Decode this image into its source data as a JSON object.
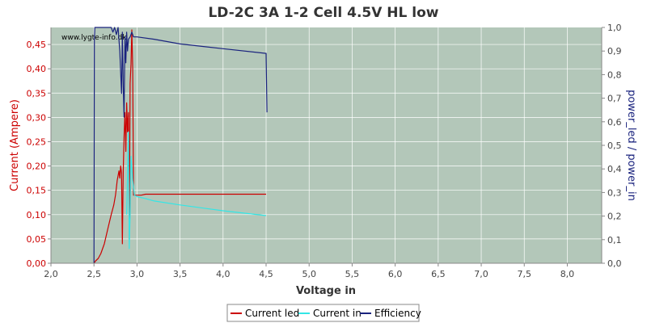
{
  "chart_data": {
    "type": "line",
    "title": "LD-2C 3A 1-2 Cell 4.5V HL low",
    "watermark": "www.lygte-info.dk",
    "xlabel": "Voltage in",
    "ylabel_left": "Current (Ampere)",
    "ylabel_right": "power_led / power_in",
    "xlim": [
      2.0,
      8.4
    ],
    "ylim_left": [
      0.0,
      0.485
    ],
    "ylim_right": [
      0.0,
      1.0
    ],
    "x_ticks": [
      "2,0",
      "2,5",
      "3,0",
      "3,5",
      "4,0",
      "4,5",
      "5,0",
      "5,5",
      "6,0",
      "6,5",
      "7,0",
      "7,5",
      "8,0"
    ],
    "x_tick_values": [
      2.0,
      2.5,
      3.0,
      3.5,
      4.0,
      4.5,
      5.0,
      5.5,
      6.0,
      6.5,
      7.0,
      7.5,
      8.0
    ],
    "y_left_ticks": [
      "0,00",
      "0,05",
      "0,10",
      "0,15",
      "0,20",
      "0,25",
      "0,30",
      "0,35",
      "0,40",
      "0,45"
    ],
    "y_left_tick_values": [
      0.0,
      0.05,
      0.1,
      0.15,
      0.2,
      0.25,
      0.3,
      0.35,
      0.4,
      0.45
    ],
    "y_right_ticks": [
      "0,0",
      "0,1",
      "0,2",
      "0,3",
      "0,4",
      "0,5",
      "0,6",
      "0,7",
      "0,8",
      "0,9",
      "1,0"
    ],
    "y_right_tick_values": [
      0.0,
      0.1,
      0.2,
      0.3,
      0.4,
      0.5,
      0.6,
      0.7,
      0.8,
      0.9,
      1.0
    ],
    "grid": true,
    "legend_position": "bottom-center",
    "colors": {
      "plot_bg": "#b3c7b9",
      "grid": "#ffffff",
      "current_led": "#cc0000",
      "current_in": "#33e6e6",
      "efficiency": "#1a237e",
      "left_axis": "#cc0000",
      "right_axis": "#1a237e"
    },
    "series": [
      {
        "name": "Current led",
        "axis": "left",
        "x": [
          2.5,
          2.52,
          2.55,
          2.58,
          2.62,
          2.66,
          2.7,
          2.73,
          2.75,
          2.76,
          2.77,
          2.78,
          2.79,
          2.8,
          2.81,
          2.82,
          2.83,
          2.84,
          2.85,
          2.86,
          2.87,
          2.88,
          2.89,
          2.9,
          2.91,
          2.92,
          2.93,
          2.94,
          2.95,
          2.96,
          2.97,
          3.0,
          3.05,
          3.1,
          3.2,
          3.5,
          4.0,
          4.5
        ],
        "y": [
          0.0,
          0.005,
          0.01,
          0.02,
          0.04,
          0.07,
          0.1,
          0.12,
          0.14,
          0.155,
          0.17,
          0.18,
          0.19,
          0.175,
          0.2,
          0.185,
          0.04,
          0.19,
          0.26,
          0.31,
          0.23,
          0.33,
          0.27,
          0.31,
          0.05,
          0.37,
          0.41,
          0.48,
          0.4,
          0.14,
          0.14,
          0.14,
          0.14,
          0.142,
          0.142,
          0.142,
          0.142,
          0.142
        ]
      },
      {
        "name": "Current in",
        "axis": "left",
        "x": [
          2.88,
          2.9,
          2.91,
          2.92,
          2.93,
          2.95,
          2.97,
          3.0,
          3.1,
          3.2,
          3.5,
          4.0,
          4.5
        ],
        "y": [
          0.1,
          0.27,
          0.03,
          0.1,
          0.22,
          0.17,
          0.14,
          0.137,
          0.133,
          0.128,
          0.12,
          0.108,
          0.098
        ]
      },
      {
        "name": "Efficiency",
        "axis": "right",
        "x": [
          2.5,
          2.505,
          2.51,
          2.53,
          2.55,
          2.58,
          2.6,
          2.62,
          2.64,
          2.66,
          2.68,
          2.7,
          2.72,
          2.74,
          2.76,
          2.78,
          2.8,
          2.82,
          2.83,
          2.84,
          2.85,
          2.86,
          2.87,
          2.88,
          2.89,
          2.9,
          2.92,
          2.94,
          2.96,
          3.0,
          3.2,
          3.5,
          4.0,
          4.5,
          4.51
        ],
        "y": [
          0.0,
          0.95,
          1.0,
          1.0,
          1.0,
          1.0,
          1.0,
          1.0,
          1.0,
          1.0,
          1.0,
          1.0,
          0.98,
          1.0,
          0.97,
          1.0,
          0.9,
          0.72,
          0.98,
          0.75,
          0.62,
          0.96,
          0.85,
          0.98,
          0.9,
          0.95,
          0.96,
          0.98,
          0.96,
          0.96,
          0.95,
          0.93,
          0.91,
          0.89,
          0.64
        ]
      }
    ]
  }
}
